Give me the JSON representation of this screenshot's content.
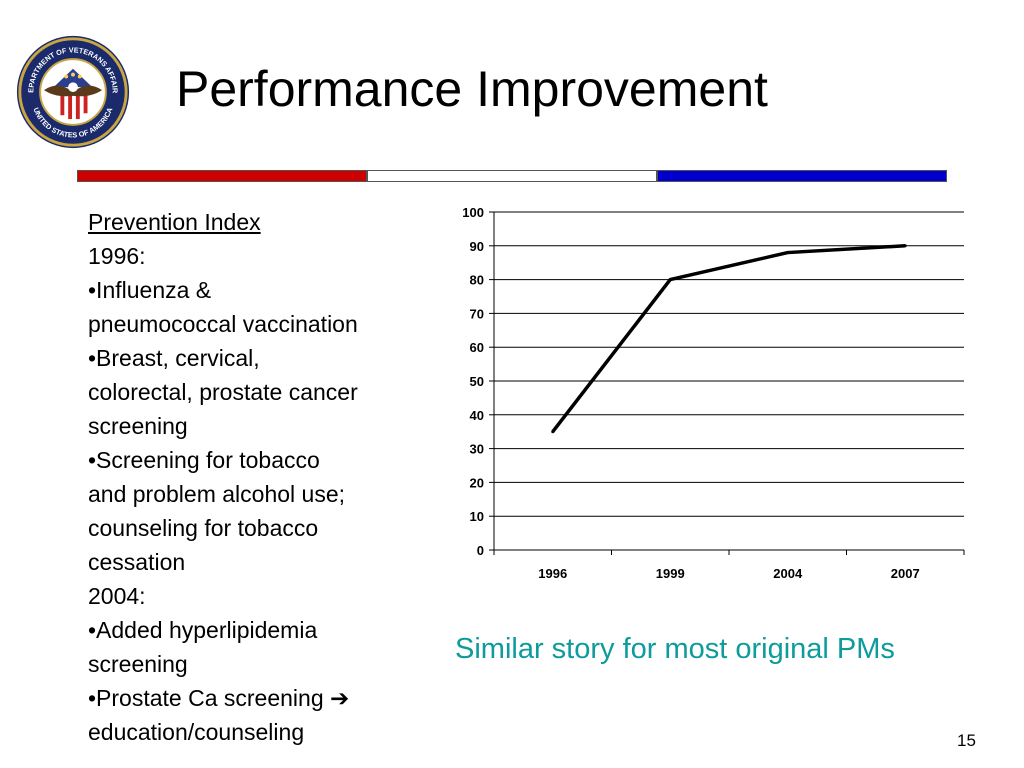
{
  "slide": {
    "title": "Performance Improvement",
    "tagline": "Similar story for most original PMs",
    "page_number": "15",
    "logo_text_top": "DEPARTMENT OF VETERANS AFFAIRS",
    "logo_text_bottom": "UNITED STATES OF AMERICA",
    "logo_icon": "va-seal-icon",
    "rule_colors": [
      "#cc0000",
      "#ffffff",
      "#0000cc"
    ],
    "tagline_color": "#0e9b9b"
  },
  "text": {
    "heading": "Prevention Index",
    "year1": "1996:",
    "b1a": "•Influenza &",
    "b1b": "pneumococcal vaccination",
    "b2a": "•Breast, cervical,",
    "b2b": "colorectal, prostate cancer",
    "b2c": "screening",
    "b3a": "•Screening for tobacco",
    "b3b": "and problem alcohol use;",
    "b3c": "counseling for tobacco",
    "b3d": "cessation",
    "year2": "2004:",
    "b4a": "•Added hyperlipidemia",
    "b4b": "screening",
    "b5a": "•Prostate Ca screening ➔",
    "b5b": "education/counseling"
  },
  "chart_data": {
    "type": "line",
    "categories": [
      "1996",
      "1999",
      "2004",
      "2007"
    ],
    "series": [
      {
        "values": [
          35,
          80,
          88,
          90
        ],
        "color": "#000000"
      }
    ],
    "ylim": [
      0,
      100
    ],
    "yticks": [
      "0",
      "10",
      "20",
      "30",
      "40",
      "50",
      "60",
      "70",
      "80",
      "90",
      "100"
    ],
    "grid": true,
    "legend": "none"
  }
}
